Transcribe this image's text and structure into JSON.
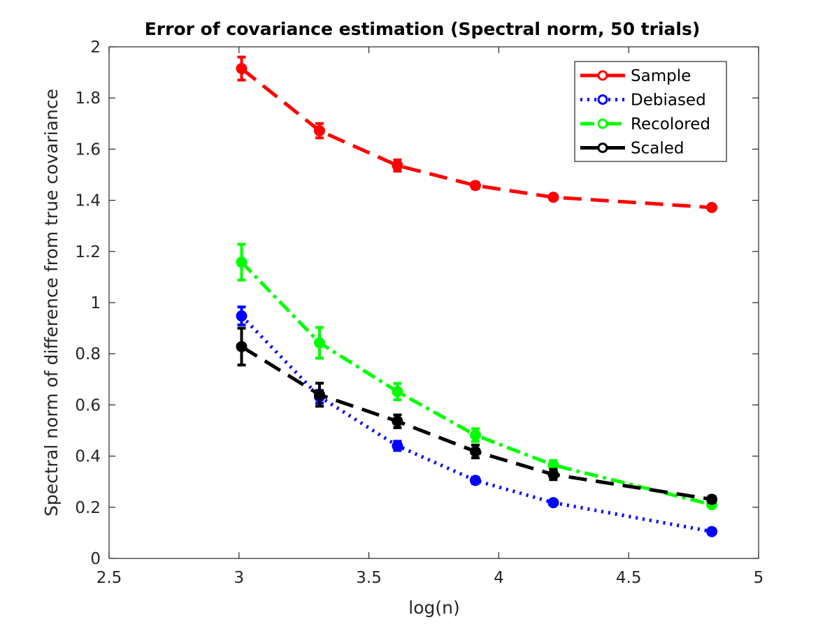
{
  "chart_data": {
    "type": "line",
    "title": "Error of covariance estimation (Spectral norm, 50 trials)",
    "xlabel": "log(n)",
    "ylabel": "Spectral norm of difference from true covariance",
    "xlim": [
      2.5,
      5
    ],
    "ylim": [
      0,
      2
    ],
    "xticks": [
      2.5,
      3,
      3.5,
      4,
      4.5,
      5
    ],
    "xtick_labels": [
      "2.5",
      "3",
      "3.5",
      "4",
      "4.5",
      "5"
    ],
    "yticks": [
      0,
      0.2,
      0.4,
      0.6,
      0.8,
      1,
      1.2,
      1.4,
      1.6,
      1.8,
      2
    ],
    "ytick_labels": [
      "0",
      "0.2",
      "0.4",
      "0.6",
      "0.8",
      "1",
      "1.2",
      "1.4",
      "1.6",
      "1.8",
      "2"
    ],
    "grid": false,
    "legend_position": "top-right",
    "x": [
      3.01,
      3.31,
      3.61,
      3.91,
      4.21,
      4.82
    ],
    "series": [
      {
        "name": "Sample",
        "color": "#ff0000",
        "line_style": "dashed",
        "values": [
          1.915,
          1.672,
          1.536,
          1.458,
          1.412,
          1.372
        ],
        "errors": [
          0.045,
          0.028,
          0.022,
          0.012,
          0.01,
          0.008
        ]
      },
      {
        "name": "Debiased",
        "color": "#0000ff",
        "line_style": "dotted",
        "values": [
          0.948,
          0.632,
          0.44,
          0.305,
          0.218,
          0.105
        ],
        "errors": [
          0.035,
          0.025,
          0.018,
          0.012,
          0.01,
          0.008
        ]
      },
      {
        "name": "Recolored",
        "color": "#00ff00",
        "line_style": "dash-dot",
        "values": [
          1.158,
          0.843,
          0.652,
          0.482,
          0.365,
          0.21
        ],
        "errors": [
          0.07,
          0.06,
          0.032,
          0.025,
          0.018,
          0.01
        ]
      },
      {
        "name": "Scaled",
        "color": "#000000",
        "line_style": "dashed",
        "values": [
          0.828,
          0.64,
          0.536,
          0.418,
          0.328,
          0.231
        ],
        "errors": [
          0.072,
          0.045,
          0.025,
          0.025,
          0.02,
          0.012
        ]
      }
    ]
  }
}
